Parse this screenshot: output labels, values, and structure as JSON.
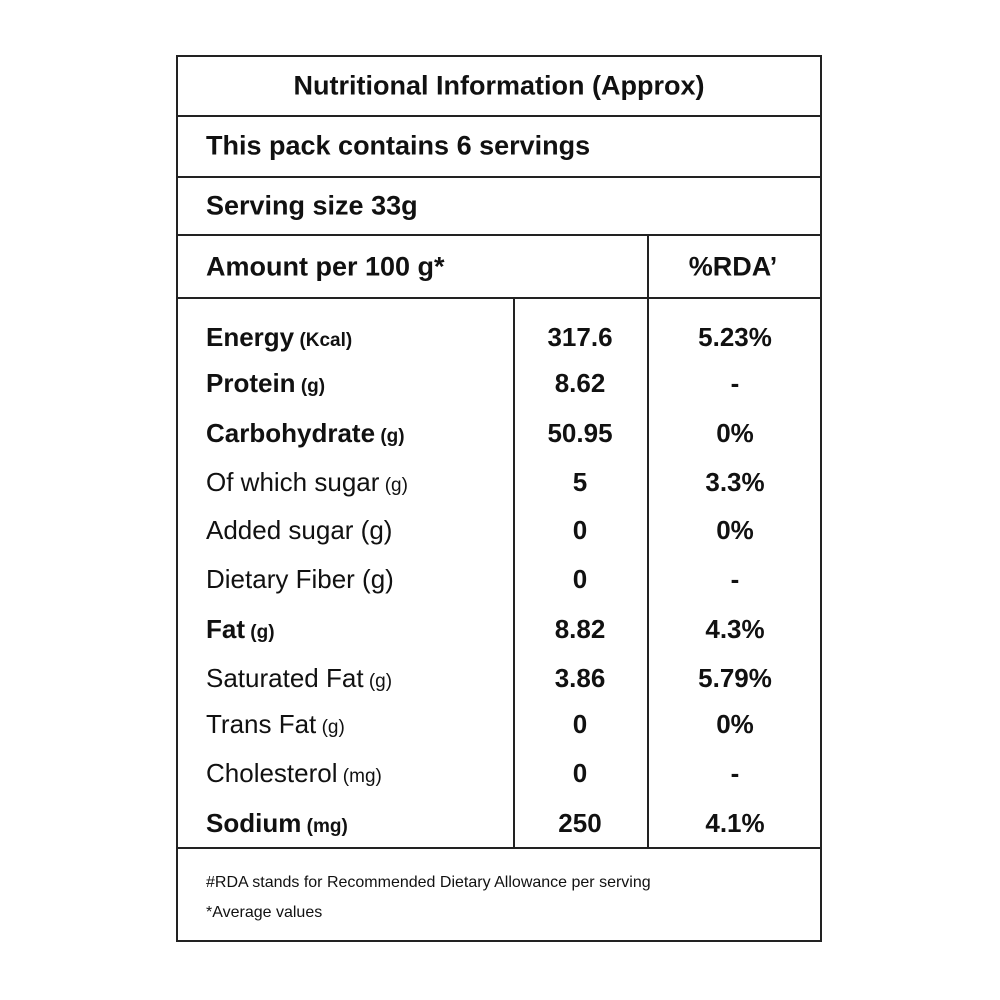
{
  "title": "Nutritional Information (Approx)",
  "servings": "This pack contains 6 servings",
  "serving_size": "Serving size 33g",
  "table": {
    "header": {
      "label": "Amount per 100 g*",
      "rda": "%RDA’"
    },
    "rows": [
      {
        "name": "Energy",
        "unit": "(Kcal)",
        "amount": "317.6",
        "rda": "5.23%",
        "bold": true
      },
      {
        "name": "Protein",
        "unit": "(g)",
        "amount": "8.62",
        "rda": "-",
        "bold": true
      },
      {
        "name": "Carbohydrate",
        "unit": "(g)",
        "amount": "50.95",
        "rda": "0%",
        "bold": true
      },
      {
        "name": "Of which sugar",
        "unit": "(g)",
        "amount": "5",
        "rda": "3.3%",
        "bold": false
      },
      {
        "name": "Added sugar (g)",
        "amount": "0",
        "rda": "0%",
        "bold": false
      },
      {
        "name": "Dietary Fiber (g)",
        "amount": "0",
        "rda": "-",
        "bold": false
      },
      {
        "name": "Fat",
        "unit": "(g)",
        "amount": "8.82",
        "rda": "4.3%",
        "bold": true
      },
      {
        "name": "Saturated Fat",
        "unit": "(g)",
        "amount": "3.86",
        "rda": "5.79%",
        "bold": false
      },
      {
        "name": "Trans Fat",
        "unit": "(g)",
        "amount": "0",
        "rda": "0%",
        "bold": false
      },
      {
        "name": "Cholesterol",
        "unit": "(mg)",
        "amount": "0",
        "rda": "-",
        "bold": false
      },
      {
        "name": "Sodium",
        "unit": "(mg)",
        "amount": "250",
        "rda": "4.1%",
        "bold": true
      }
    ]
  },
  "footnotes": [
    "#RDA stands for Recommended Dietary Allowance per serving",
    "*Average values"
  ]
}
